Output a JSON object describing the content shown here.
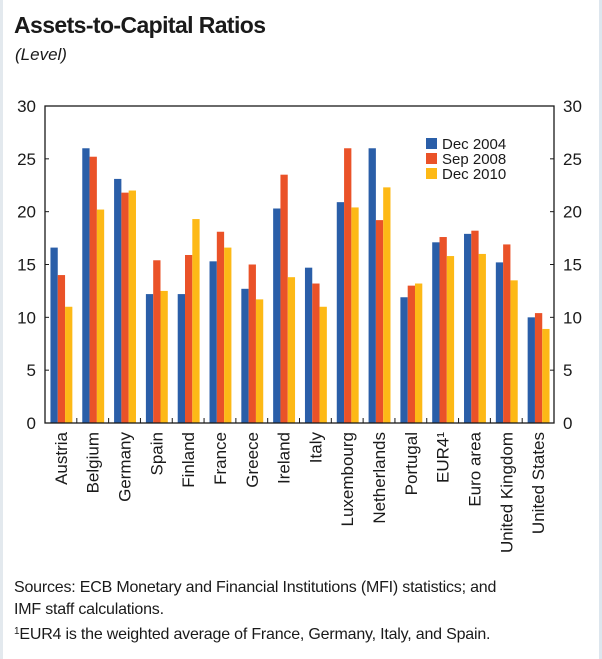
{
  "chart_data": {
    "type": "bar",
    "title": "Assets-to-Capital Ratios",
    "subtitle": "(Level)",
    "xlabel": "",
    "ylabel": "",
    "ylim": [
      0,
      30
    ],
    "yticks": [
      0,
      5,
      10,
      15,
      20,
      25,
      30
    ],
    "ytick_labels": [
      "0",
      "5",
      "10",
      "15",
      "20",
      "25",
      "30"
    ],
    "right_axis_mirrors_left": true,
    "grid": false,
    "legend_position": "top-right",
    "categories": [
      "Austria",
      "Belgium",
      "Germany",
      "Spain",
      "Finland",
      "France",
      "Greece",
      "Ireland",
      "Italy",
      "Luxembourg",
      "Netherlands",
      "Portugal",
      "EUR4¹",
      "Euro area",
      "United Kingdom",
      "United States"
    ],
    "series": [
      {
        "name": "Dec 2004",
        "color": "#2a5ea8",
        "values": [
          16.6,
          26.0,
          23.1,
          12.2,
          12.2,
          15.3,
          12.7,
          20.3,
          14.7,
          20.9,
          26.0,
          11.9,
          17.1,
          17.9,
          15.2,
          10.0
        ]
      },
      {
        "name": "Sep 2008",
        "color": "#ea5228",
        "values": [
          14.0,
          25.2,
          21.8,
          15.4,
          15.9,
          18.1,
          15.0,
          23.5,
          13.2,
          26.0,
          19.2,
          13.0,
          17.6,
          18.2,
          16.9,
          10.4
        ]
      },
      {
        "name": "Dec 2010",
        "color": "#fdb916",
        "values": [
          11.0,
          20.2,
          22.0,
          12.5,
          19.3,
          16.6,
          11.7,
          13.8,
          11.0,
          20.4,
          22.3,
          13.2,
          15.8,
          16.0,
          13.5,
          8.9
        ]
      }
    ]
  },
  "footer": {
    "sources": "Sources: ECB Monetary and Financial Institutions (MFI) statistics; and",
    "sources_cont": "IMF staff calculations.",
    "note_marker": "1",
    "note": "EUR4 is the weighted average of France, Germany, Italy, and Spain."
  }
}
